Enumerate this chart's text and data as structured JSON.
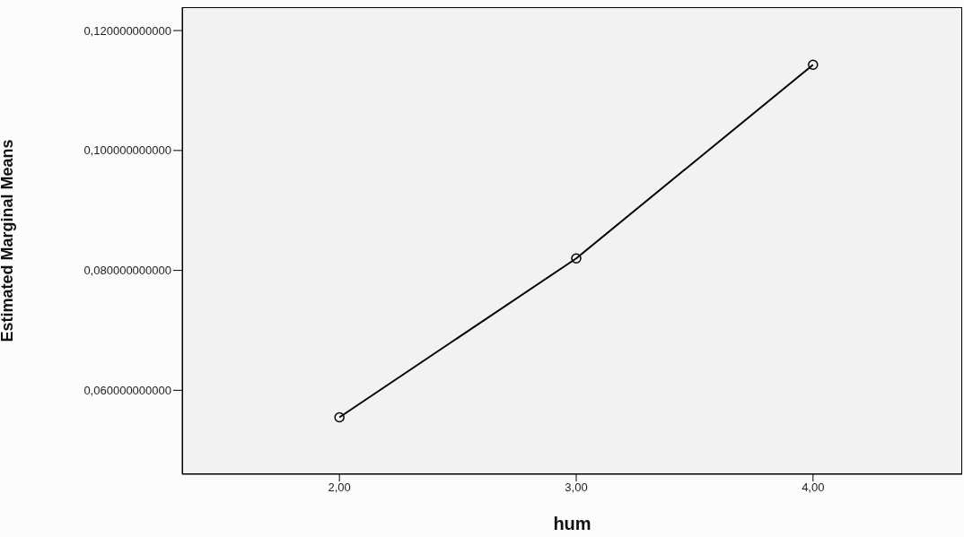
{
  "chart_data": {
    "type": "line",
    "xlabel": "hum",
    "ylabel": "Estimated Marginal Means",
    "x": [
      2,
      3,
      4
    ],
    "series": [
      {
        "color": "#000000",
        "values": [
          0.0555,
          0.082,
          0.1143
        ]
      }
    ],
    "xlim": [
      1.336,
      4.63
    ],
    "xticks": [
      {
        "value": 2,
        "label": "2,00"
      },
      {
        "value": 3,
        "label": "3,00"
      },
      {
        "value": 4,
        "label": "4,00"
      }
    ],
    "ylim": [
      0.046,
      0.1239
    ],
    "yticks": [
      {
        "value": 0.06,
        "label": "0,060000000000"
      },
      {
        "value": 0.08,
        "label": "0,080000000000"
      },
      {
        "value": 0.1,
        "label": "0,100000000000"
      },
      {
        "value": 0.12,
        "label": "0,120000000000"
      }
    ],
    "grid": false,
    "legend": false,
    "marker": "circle",
    "line_style": "solid"
  }
}
